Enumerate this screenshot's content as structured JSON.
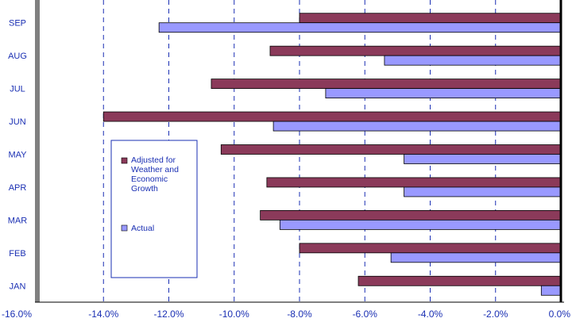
{
  "chart_data": {
    "type": "bar",
    "orientation": "horizontal",
    "categories": [
      "SEP",
      "AUG",
      "JUL",
      "JUN",
      "MAY",
      "APR",
      "MAR",
      "FEB",
      "JAN"
    ],
    "series": [
      {
        "name": "Adjusted for Weather and Economic Growth",
        "color": "#8B3A5A",
        "values": [
          -8.0,
          -8.9,
          -10.7,
          -14.0,
          -10.4,
          -9.0,
          -9.2,
          -8.0,
          -6.2
        ]
      },
      {
        "name": "Actual",
        "color": "#9999FF",
        "values": [
          -12.3,
          -5.4,
          -7.2,
          -8.8,
          -4.8,
          -4.8,
          -8.6,
          -5.2,
          -0.6
        ]
      }
    ],
    "xlim": [
      -16.0,
      0.0
    ],
    "xticks": [
      -16,
      -14,
      -12,
      -10,
      -8,
      -6,
      -4,
      -2,
      0
    ],
    "xtick_labels": [
      "-16.0%",
      "-14.0%",
      "-12.0%",
      "-10.0%",
      "-8.0%",
      "-6.0%",
      "-4.0%",
      "-2.0%",
      "0.0%"
    ],
    "grid": "vertical dashed",
    "legend": {
      "placement": "inside-left",
      "entries": [
        {
          "lines": [
            "Adjusted for",
            "Weather and",
            "Economic",
            "Growth"
          ],
          "color": "#8B3A5A"
        },
        {
          "lines": [
            "Actual"
          ],
          "color": "#9999FF"
        }
      ]
    },
    "title": "",
    "xlabel": "",
    "ylabel": ""
  }
}
